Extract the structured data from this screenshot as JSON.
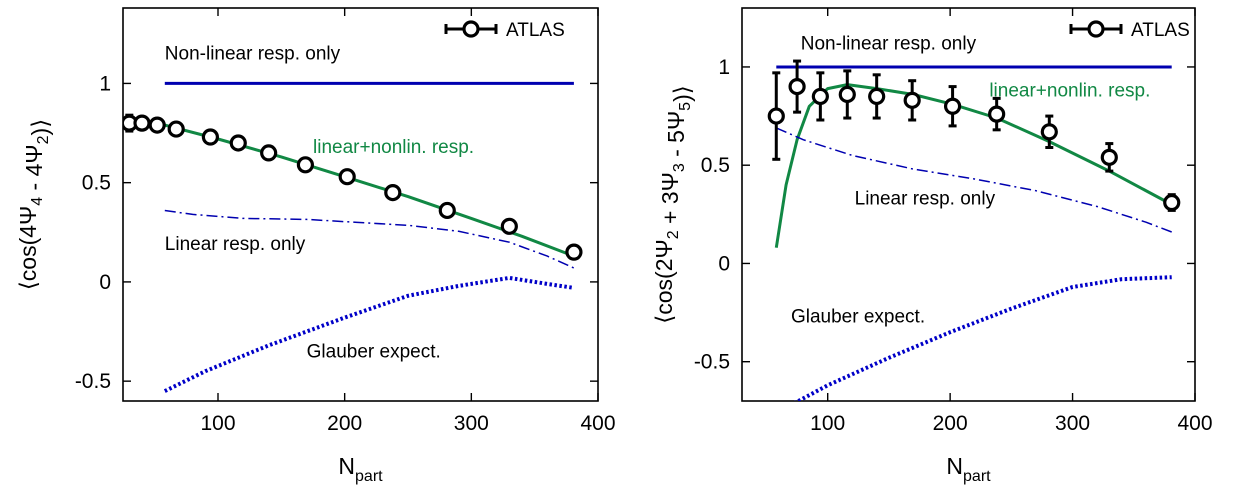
{
  "figure": {
    "xlabel_main": "N",
    "xlabel_sub": "part"
  },
  "colors": {
    "axis": "#000000",
    "nonlinear": "#0000b0",
    "linear": "#0000b0",
    "glauber": "#0000c8",
    "fit": "#118844",
    "data": "#000000"
  },
  "chart_data": [
    {
      "type": "line",
      "ylabel": "⟨cos(4Ψ4 - 4Ψ2)⟩",
      "xlim": [
        25,
        400
      ],
      "ylim": [
        -0.6,
        1.38
      ],
      "xticks": [
        100,
        200,
        300,
        400
      ],
      "xtick_labels": [
        "100",
        "200",
        "300",
        "400"
      ],
      "yticks": [
        -0.5,
        0,
        0.5,
        1
      ],
      "ytick_labels": [
        "-0.5",
        "0",
        "0.5",
        "1"
      ],
      "legend": {
        "label": "ATLAS",
        "position": "top-right"
      },
      "annotations": [
        {
          "text": "Non-linear resp. only",
          "x": 58,
          "y": 1.12,
          "color": "#000000"
        },
        {
          "text": "linear+nonlin. resp.",
          "x": 175,
          "y": 0.65,
          "color": "#118844"
        },
        {
          "text": "Linear resp. only",
          "x": 58,
          "y": 0.16,
          "color": "#000000"
        },
        {
          "text": "Glauber expect.",
          "x": 170,
          "y": -0.38,
          "color": "#000000"
        }
      ],
      "series": [
        {
          "key": "atlas",
          "style": "points",
          "x": [
            30,
            40,
            52,
            67,
            94,
            116,
            140,
            169,
            202,
            238,
            281,
            330,
            381
          ],
          "y": [
            0.8,
            0.8,
            0.79,
            0.77,
            0.73,
            0.7,
            0.65,
            0.59,
            0.53,
            0.45,
            0.36,
            0.28,
            0.15
          ],
          "yerr": [
            0.04,
            0.03,
            0.03,
            0.03,
            0.02,
            0.02,
            0.02,
            0.02,
            0.02,
            0.02,
            0.02,
            0.02,
            0.02
          ]
        },
        {
          "key": "nonlinear",
          "style": "solid-blue",
          "x": [
            58,
            381
          ],
          "y": [
            1.0,
            1.0
          ]
        },
        {
          "key": "fit",
          "style": "solid-green",
          "x": [
            58,
            100,
            150,
            200,
            250,
            300,
            340,
            381
          ],
          "y": [
            0.79,
            0.72,
            0.63,
            0.53,
            0.43,
            0.32,
            0.23,
            0.13
          ]
        },
        {
          "key": "linear",
          "style": "dashdot-blue",
          "x": [
            58,
            80,
            120,
            170,
            210,
            250,
            290,
            330,
            360,
            381
          ],
          "y": [
            0.36,
            0.34,
            0.32,
            0.315,
            0.3,
            0.285,
            0.255,
            0.2,
            0.13,
            0.07
          ]
        },
        {
          "key": "glauber",
          "style": "dotted-blue",
          "x": [
            58,
            90,
            140,
            200,
            250,
            290,
            330,
            360,
            381
          ],
          "y": [
            -0.55,
            -0.45,
            -0.32,
            -0.18,
            -0.07,
            -0.02,
            0.02,
            -0.01,
            -0.03
          ]
        }
      ]
    },
    {
      "type": "line",
      "ylabel": "⟨cos(2Ψ2 + 3Ψ3 - 5Ψ5)⟩",
      "xlim": [
        30,
        400
      ],
      "ylim": [
        -0.7,
        1.3
      ],
      "xticks": [
        100,
        200,
        300,
        400
      ],
      "xtick_labels": [
        "100",
        "200",
        "300",
        "400"
      ],
      "yticks": [
        -0.5,
        0,
        0.5,
        1
      ],
      "ytick_labels": [
        "-0.5",
        "0",
        "0.5",
        "1"
      ],
      "legend": {
        "label": "ATLAS",
        "position": "top-right"
      },
      "annotations": [
        {
          "text": "Non-linear resp. only",
          "x": 78,
          "y": 1.09,
          "color": "#000000"
        },
        {
          "text": "linear+nonlin. resp.",
          "x": 232,
          "y": 0.85,
          "color": "#118844"
        },
        {
          "text": "Linear resp. only",
          "x": 122,
          "y": 0.3,
          "color": "#000000"
        },
        {
          "text": "Glauber expect.",
          "x": 70,
          "y": -0.3,
          "color": "#000000"
        }
      ],
      "series": [
        {
          "key": "atlas",
          "style": "points",
          "x": [
            58,
            75,
            94,
            116,
            140,
            169,
            202,
            238,
            281,
            330,
            381
          ],
          "y": [
            0.75,
            0.9,
            0.85,
            0.86,
            0.85,
            0.83,
            0.8,
            0.76,
            0.67,
            0.54,
            0.31
          ],
          "yerr": [
            0.22,
            0.13,
            0.12,
            0.12,
            0.11,
            0.1,
            0.1,
            0.08,
            0.08,
            0.07,
            0.04
          ]
        },
        {
          "key": "nonlinear",
          "style": "solid-blue",
          "x": [
            58,
            381
          ],
          "y": [
            1.0,
            1.0
          ]
        },
        {
          "key": "fit",
          "style": "solid-green",
          "x": [
            58,
            66,
            75,
            85,
            100,
            116,
            140,
            170,
            202,
            238,
            281,
            330,
            381
          ],
          "y": [
            0.08,
            0.4,
            0.63,
            0.8,
            0.89,
            0.91,
            0.89,
            0.86,
            0.81,
            0.74,
            0.62,
            0.47,
            0.3
          ]
        },
        {
          "key": "linear",
          "style": "dashdot-blue",
          "x": [
            58,
            80,
            120,
            170,
            220,
            270,
            320,
            360,
            381
          ],
          "y": [
            0.69,
            0.63,
            0.55,
            0.48,
            0.43,
            0.37,
            0.29,
            0.21,
            0.16
          ]
        },
        {
          "key": "glauber",
          "style": "dotted-blue",
          "x": [
            58,
            100,
            150,
            200,
            250,
            300,
            340,
            381
          ],
          "y": [
            -0.76,
            -0.62,
            -0.48,
            -0.35,
            -0.23,
            -0.12,
            -0.08,
            -0.07
          ]
        }
      ]
    }
  ]
}
